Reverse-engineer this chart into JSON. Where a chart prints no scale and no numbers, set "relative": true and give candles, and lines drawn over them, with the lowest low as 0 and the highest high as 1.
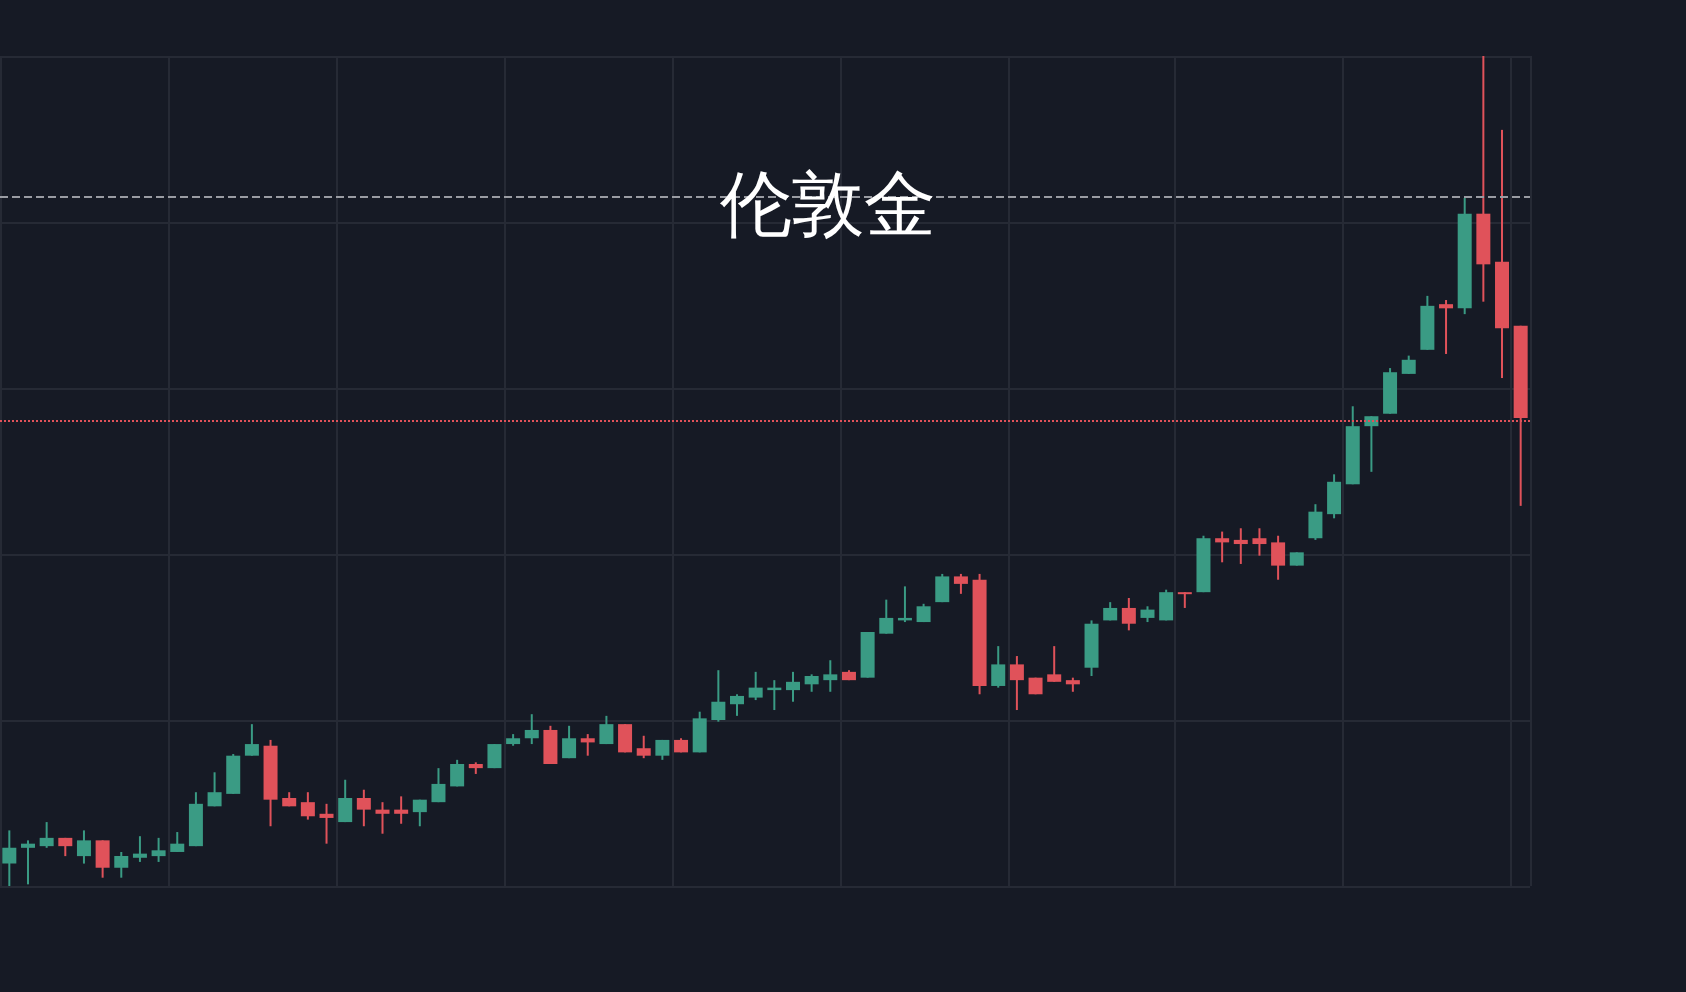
{
  "chart_data": {
    "type": "candlestick",
    "title": "伦敦金",
    "relative": true,
    "grid": true,
    "categories": [
      null,
      null,
      null,
      null,
      null,
      null,
      null,
      null,
      null,
      null,
      null,
      null,
      null,
      null,
      null,
      null,
      null,
      null,
      null,
      null,
      null,
      null,
      null,
      null,
      null,
      null,
      null,
      null,
      null,
      null,
      null,
      null,
      null,
      null,
      null,
      null,
      null,
      null,
      null,
      null,
      null,
      null,
      null,
      null,
      null,
      null,
      null,
      null,
      null,
      null,
      null,
      null,
      null,
      null,
      null,
      null,
      null,
      null,
      null,
      null,
      null,
      null,
      null,
      null,
      null,
      null,
      null,
      null,
      null,
      null,
      null,
      null,
      null,
      null,
      null,
      null,
      null,
      null,
      null,
      null,
      null,
      null
    ],
    "ohlc": [
      [
        0.027,
        0.067,
        0,
        0.046
      ],
      [
        0.046,
        0.055,
        0.002,
        0.051
      ],
      [
        0.048,
        0.077,
        0.046,
        0.058
      ],
      [
        0.058,
        0.058,
        0.036,
        0.048
      ],
      [
        0.036,
        0.067,
        0.027,
        0.055
      ],
      [
        0.055,
        0.055,
        0.01,
        0.022
      ],
      [
        0.022,
        0.041,
        0.01,
        0.036
      ],
      [
        0.034,
        0.06,
        0.029,
        0.039
      ],
      [
        0.036,
        0.058,
        0.029,
        0.043
      ],
      [
        0.041,
        0.065,
        0.041,
        0.051
      ],
      [
        0.048,
        0.113,
        0.048,
        0.099
      ],
      [
        0.096,
        0.137,
        0.096,
        0.113
      ],
      [
        0.111,
        0.159,
        0.111,
        0.157
      ],
      [
        0.157,
        0.195,
        0.157,
        0.171
      ],
      [
        0.169,
        0.176,
        0.072,
        0.104
      ],
      [
        0.106,
        0.113,
        0.096,
        0.096
      ],
      [
        0.101,
        0.113,
        0.08,
        0.084
      ],
      [
        0.087,
        0.099,
        0.051,
        0.082
      ],
      [
        0.077,
        0.128,
        0.077,
        0.106
      ],
      [
        0.106,
        0.116,
        0.072,
        0.092
      ],
      [
        0.092,
        0.101,
        0.063,
        0.087
      ],
      [
        0.092,
        0.108,
        0.075,
        0.087
      ],
      [
        0.089,
        0.104,
        0.072,
        0.104
      ],
      [
        0.101,
        0.142,
        0.101,
        0.123
      ],
      [
        0.12,
        0.152,
        0.12,
        0.147
      ],
      [
        0.147,
        0.149,
        0.135,
        0.142
      ],
      [
        0.142,
        0.171,
        0.142,
        0.171
      ],
      [
        0.171,
        0.183,
        0.169,
        0.178
      ],
      [
        0.178,
        0.207,
        0.171,
        0.188
      ],
      [
        0.188,
        0.193,
        0.147,
        0.147
      ],
      [
        0.154,
        0.193,
        0.154,
        0.178
      ],
      [
        0.178,
        0.183,
        0.157,
        0.173
      ],
      [
        0.171,
        0.205,
        0.171,
        0.195
      ],
      [
        0.195,
        0.195,
        0.161,
        0.161
      ],
      [
        0.166,
        0.181,
        0.154,
        0.157
      ],
      [
        0.157,
        0.176,
        0.152,
        0.176
      ],
      [
        0.176,
        0.178,
        0.161,
        0.161
      ],
      [
        0.161,
        0.21,
        0.161,
        0.202
      ],
      [
        0.2,
        0.26,
        0.198,
        0.222
      ],
      [
        0.219,
        0.231,
        0.205,
        0.229
      ],
      [
        0.227,
        0.258,
        0.224,
        0.239
      ],
      [
        0.236,
        0.248,
        0.212,
        0.239
      ],
      [
        0.236,
        0.258,
        0.222,
        0.246
      ],
      [
        0.243,
        0.255,
        0.234,
        0.253
      ],
      [
        0.248,
        0.272,
        0.234,
        0.255
      ],
      [
        0.258,
        0.26,
        0.248,
        0.248
      ],
      [
        0.251,
        0.306,
        0.251,
        0.306
      ],
      [
        0.304,
        0.345,
        0.304,
        0.323
      ],
      [
        0.32,
        0.361,
        0.318,
        0.323
      ],
      [
        0.318,
        0.34,
        0.318,
        0.337
      ],
      [
        0.342,
        0.376,
        0.342,
        0.373
      ],
      [
        0.373,
        0.376,
        0.352,
        0.364
      ],
      [
        0.369,
        0.376,
        0.231,
        0.241
      ],
      [
        0.241,
        0.289,
        0.239,
        0.267
      ],
      [
        0.267,
        0.277,
        0.212,
        0.248
      ],
      [
        0.251,
        0.251,
        0.231,
        0.231
      ],
      [
        0.255,
        0.289,
        0.246,
        0.246
      ],
      [
        0.248,
        0.251,
        0.234,
        0.243
      ],
      [
        0.263,
        0.32,
        0.253,
        0.316
      ],
      [
        0.32,
        0.342,
        0.32,
        0.335
      ],
      [
        0.335,
        0.347,
        0.308,
        0.316
      ],
      [
        0.323,
        0.337,
        0.318,
        0.333
      ],
      [
        0.32,
        0.357,
        0.32,
        0.354
      ],
      [
        0.354,
        0.354,
        0.335,
        0.352
      ],
      [
        0.354,
        0.422,
        0.354,
        0.419
      ],
      [
        0.419,
        0.427,
        0.39,
        0.414
      ],
      [
        0.417,
        0.431,
        0.388,
        0.412
      ],
      [
        0.419,
        0.431,
        0.398,
        0.412
      ],
      [
        0.414,
        0.422,
        0.369,
        0.386
      ],
      [
        0.386,
        0.402,
        0.386,
        0.402
      ],
      [
        0.419,
        0.46,
        0.417,
        0.451
      ],
      [
        0.448,
        0.496,
        0.443,
        0.487
      ],
      [
        0.484,
        0.578,
        0.484,
        0.554
      ],
      [
        0.554,
        0.566,
        0.499,
        0.566
      ],
      [
        0.569,
        0.624,
        0.569,
        0.619
      ],
      [
        0.617,
        0.639,
        0.617,
        0.634
      ],
      [
        0.646,
        0.711,
        0.646,
        0.699
      ],
      [
        0.701,
        0.706,
        0.641,
        0.696
      ],
      [
        0.696,
        0.829,
        0.689,
        0.81
      ],
      [
        0.81,
        1,
        0.704,
        0.749
      ],
      [
        0.752,
        0.911,
        0.612,
        0.672
      ],
      [
        0.675,
        0.675,
        0.458,
        0.564
      ]
    ],
    "colors": [
      "#3a9b84",
      "#3a9b84",
      "#3a9b84",
      "#e0525a",
      "#3a9b84",
      "#e0525a",
      "#3a9b84",
      "#3a9b84",
      "#3a9b84",
      "#3a9b84",
      "#3a9b84",
      "#3a9b84",
      "#3a9b84",
      "#3a9b84",
      "#e0525a",
      "#e0525a",
      "#e0525a",
      "#e0525a",
      "#3a9b84",
      "#e0525a",
      "#e0525a",
      "#e0525a",
      "#3a9b84",
      "#3a9b84",
      "#3a9b84",
      "#e0525a",
      "#3a9b84",
      "#3a9b84",
      "#3a9b84",
      "#e0525a",
      "#3a9b84",
      "#e0525a",
      "#3a9b84",
      "#e0525a",
      "#e0525a",
      "#3a9b84",
      "#e0525a",
      "#3a9b84",
      "#3a9b84",
      "#3a9b84",
      "#3a9b84",
      "#3a9b84",
      "#3a9b84",
      "#3a9b84",
      "#3a9b84",
      "#e0525a",
      "#3a9b84",
      "#3a9b84",
      "#3a9b84",
      "#3a9b84",
      "#3a9b84",
      "#e0525a",
      "#e0525a",
      "#3a9b84",
      "#e0525a",
      "#e0525a",
      "#e0525a",
      "#e0525a",
      "#3a9b84",
      "#3a9b84",
      "#e0525a",
      "#3a9b84",
      "#3a9b84",
      "#e0525a",
      "#3a9b84",
      "#e0525a",
      "#e0525a",
      "#e0525a",
      "#e0525a",
      "#3a9b84",
      "#3a9b84",
      "#3a9b84",
      "#3a9b84",
      "#3a9b84",
      "#3a9b84",
      "#3a9b84",
      "#3a9b84",
      "#e0525a",
      "#3a9b84",
      "#e0525a",
      "#e0525a",
      "#e0525a"
    ],
    "ref_lines": [
      {
        "axis": "y",
        "value": 0.831,
        "color": "#9a9ca3",
        "line_style": "dashed"
      },
      {
        "axis": "y",
        "value": 0.564,
        "color": "#e0525a",
        "line_style": "dotted"
      }
    ]
  }
}
